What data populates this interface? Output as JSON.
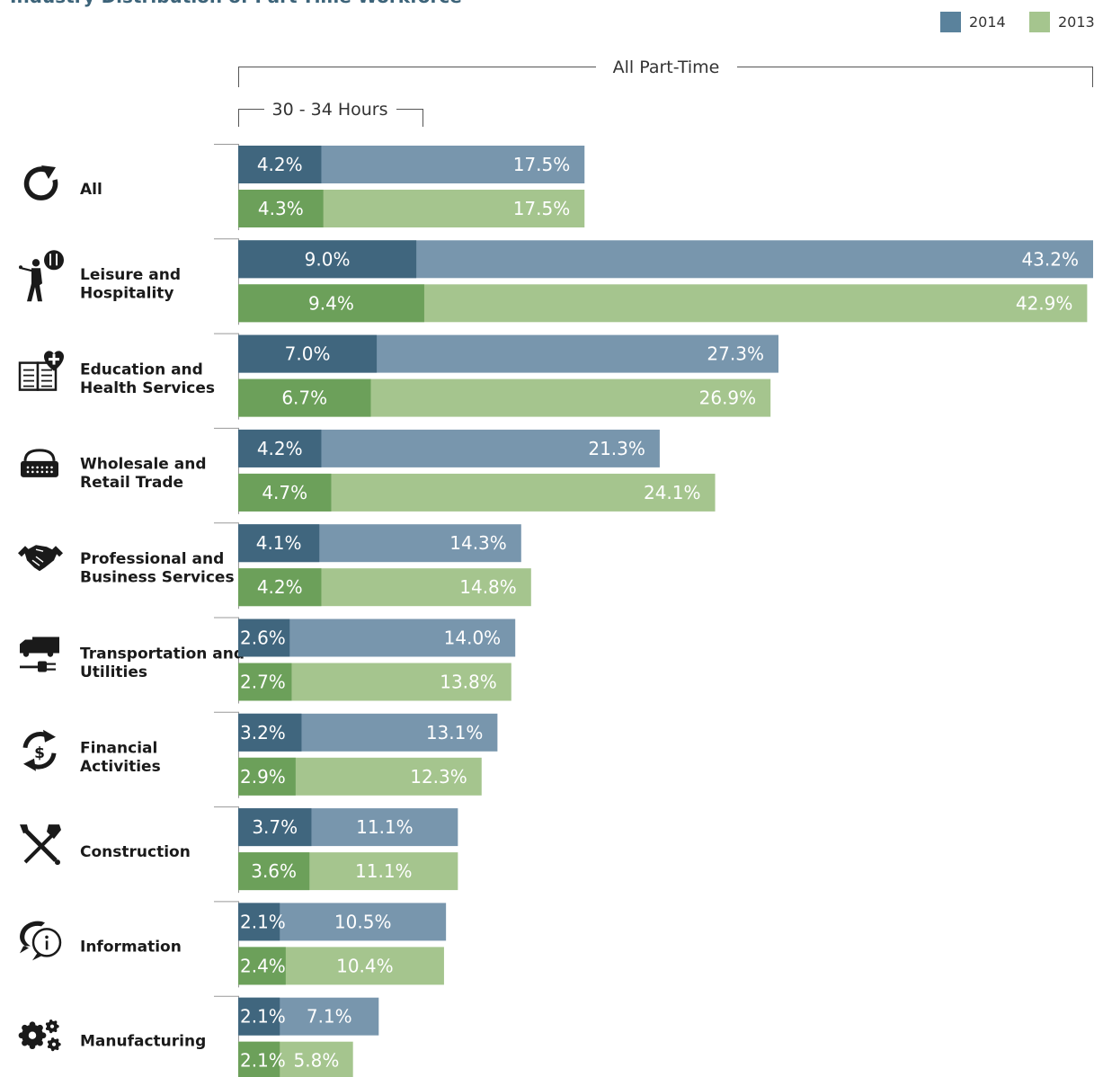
{
  "chart_data": {
    "type": "bar",
    "title": "Industry Distribution of Part-Time Workforce",
    "range_labels": {
      "all_part_time": "All Part-Time",
      "hours_30_34": "30 - 34 Hours"
    },
    "colors": {
      "2014_30_34": "#40667e",
      "2014_all": "#7896ad",
      "2013_30_34": "#6ca05a",
      "2013_all": "#a5c58e"
    },
    "series": [
      {
        "name": "2014"
      },
      {
        "name": "2013"
      }
    ],
    "xlim": [
      0,
      43.2
    ],
    "categories": [
      {
        "label": "All",
        "icon": "refresh-icon",
        "values": {
          "2014": {
            "hours_30_34": 4.2,
            "all_part_time": 17.5
          },
          "2013": {
            "hours_30_34": 4.3,
            "all_part_time": 17.5
          }
        },
        "labels": {
          "2014": {
            "hours_30_34": "4.2%",
            "all_part_time": "17.5%"
          },
          "2013": {
            "hours_30_34": "4.3%",
            "all_part_time": "17.5%"
          }
        }
      },
      {
        "label": "Leisure and Hospitality",
        "icon": "golfer-dining-icon",
        "values": {
          "2014": {
            "hours_30_34": 9.0,
            "all_part_time": 43.2
          },
          "2013": {
            "hours_30_34": 9.4,
            "all_part_time": 42.9
          }
        },
        "labels": {
          "2014": {
            "hours_30_34": "9.0%",
            "all_part_time": "43.2%"
          },
          "2013": {
            "hours_30_34": "9.4%",
            "all_part_time": "42.9%"
          }
        }
      },
      {
        "label": "Education and Health Services",
        "icon": "book-heart-icon",
        "values": {
          "2014": {
            "hours_30_34": 7.0,
            "all_part_time": 27.3
          },
          "2013": {
            "hours_30_34": 6.7,
            "all_part_time": 26.9
          }
        },
        "labels": {
          "2014": {
            "hours_30_34": "7.0%",
            "all_part_time": "27.3%"
          },
          "2013": {
            "hours_30_34": "6.7%",
            "all_part_time": "26.9%"
          }
        }
      },
      {
        "label": "Wholesale and Retail Trade",
        "icon": "basket-icon",
        "values": {
          "2014": {
            "hours_30_34": 4.2,
            "all_part_time": 21.3
          },
          "2013": {
            "hours_30_34": 4.7,
            "all_part_time": 24.1
          }
        },
        "labels": {
          "2014": {
            "hours_30_34": "4.2%",
            "all_part_time": "21.3%"
          },
          "2013": {
            "hours_30_34": "4.7%",
            "all_part_time": "24.1%"
          }
        }
      },
      {
        "label": "Professional and Business Services",
        "icon": "handshake-icon",
        "values": {
          "2014": {
            "hours_30_34": 4.1,
            "all_part_time": 14.3
          },
          "2013": {
            "hours_30_34": 4.2,
            "all_part_time": 14.8
          }
        },
        "labels": {
          "2014": {
            "hours_30_34": "4.1%",
            "all_part_time": "14.3%"
          },
          "2013": {
            "hours_30_34": "4.2%",
            "all_part_time": "14.8%"
          }
        }
      },
      {
        "label": "Transportation and Utilities",
        "icon": "truck-plug-icon",
        "values": {
          "2014": {
            "hours_30_34": 2.6,
            "all_part_time": 14.0
          },
          "2013": {
            "hours_30_34": 2.7,
            "all_part_time": 13.8
          }
        },
        "labels": {
          "2014": {
            "hours_30_34": "2.6%",
            "all_part_time": "14.0%"
          },
          "2013": {
            "hours_30_34": "2.7%",
            "all_part_time": "13.8%"
          }
        }
      },
      {
        "label": "Financial Activities",
        "icon": "dollar-cycle-icon",
        "values": {
          "2014": {
            "hours_30_34": 3.2,
            "all_part_time": 13.1
          },
          "2013": {
            "hours_30_34": 2.9,
            "all_part_time": 12.3
          }
        },
        "labels": {
          "2014": {
            "hours_30_34": "3.2%",
            "all_part_time": "13.1%"
          },
          "2013": {
            "hours_30_34": "2.9%",
            "all_part_time": "12.3%"
          }
        }
      },
      {
        "label": "Construction",
        "icon": "tools-icon",
        "values": {
          "2014": {
            "hours_30_34": 3.7,
            "all_part_time": 11.1
          },
          "2013": {
            "hours_30_34": 3.6,
            "all_part_time": 11.1
          }
        },
        "labels": {
          "2014": {
            "hours_30_34": "3.7%",
            "all_part_time": "11.1%"
          },
          "2013": {
            "hours_30_34": "3.6%",
            "all_part_time": "11.1%"
          }
        }
      },
      {
        "label": "Information",
        "icon": "info-speech-icon",
        "values": {
          "2014": {
            "hours_30_34": 2.1,
            "all_part_time": 10.5
          },
          "2013": {
            "hours_30_34": 2.4,
            "all_part_time": 10.4
          }
        },
        "labels": {
          "2014": {
            "hours_30_34": "2.1%",
            "all_part_time": "10.5%"
          },
          "2013": {
            "hours_30_34": "2.4%",
            "all_part_time": "10.4%"
          }
        }
      },
      {
        "label": "Manufacturing",
        "icon": "gears-icon",
        "values": {
          "2014": {
            "hours_30_34": 2.1,
            "all_part_time": 7.1
          },
          "2013": {
            "hours_30_34": 2.1,
            "all_part_time": 5.8
          }
        },
        "labels": {
          "2014": {
            "hours_30_34": "2.1%",
            "all_part_time": "7.1%"
          },
          "2013": {
            "hours_30_34": "2.1%",
            "all_part_time": "5.8%"
          }
        }
      }
    ]
  }
}
